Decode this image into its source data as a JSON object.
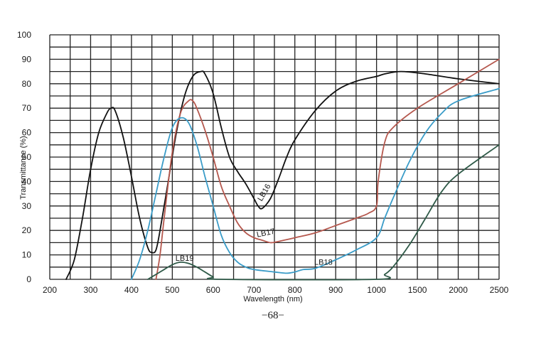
{
  "chart_data": {
    "type": "line",
    "xlabel": "Wavelength (nm)",
    "ylabel": "Transmittance (%)",
    "ylim": [
      0,
      100
    ],
    "x_ticks": [
      "200",
      "300",
      "400",
      "500",
      "600",
      "700",
      "800",
      "900",
      "1000",
      "1500",
      "2000",
      "2500"
    ],
    "y_ticks": [
      "0",
      "10",
      "20",
      "30",
      "40",
      "50",
      "60",
      "70",
      "80",
      "90",
      "100"
    ],
    "grid": true,
    "series": [
      {
        "name": "LB16",
        "color": "#111111",
        "x": [
          240,
          260,
          280,
          300,
          320,
          340,
          350,
          360,
          380,
          400,
          420,
          440,
          450,
          460,
          470,
          490,
          510,
          530,
          550,
          570,
          580,
          600,
          620,
          640,
          660,
          680,
          700,
          710,
          720,
          740,
          760,
          780,
          800,
          850,
          900,
          950,
          1000,
          1100,
          1300,
          1600,
          2000,
          2500
        ],
        "y": [
          0,
          8,
          25,
          45,
          60,
          68,
          70,
          69,
          58,
          42,
          25,
          13,
          11,
          12,
          20,
          40,
          60,
          75,
          83,
          85,
          84,
          76,
          62,
          50,
          44,
          39,
          33,
          30,
          29,
          33,
          41,
          50,
          57,
          69,
          77,
          81,
          83,
          84,
          85,
          84,
          82,
          80
        ]
      },
      {
        "name": "LB17",
        "color": "#b5584e",
        "x": [
          460,
          470,
          480,
          500,
          520,
          540,
          550,
          560,
          580,
          600,
          620,
          640,
          660,
          680,
          700,
          720,
          740,
          760,
          800,
          850,
          900,
          950,
          980,
          1000,
          1020,
          1100,
          1200,
          1500,
          2000,
          2500
        ],
        "y": [
          0,
          10,
          25,
          52,
          68,
          73,
          73,
          70,
          61,
          50,
          38,
          30,
          23,
          19,
          17,
          16,
          15,
          15.5,
          17,
          19,
          22,
          25,
          27,
          30,
          40,
          56,
          62,
          70,
          80,
          90
        ]
      },
      {
        "name": "LB18",
        "color": "#3a9cc8",
        "x": [
          400,
          420,
          440,
          460,
          480,
          500,
          520,
          540,
          560,
          580,
          600,
          620,
          640,
          660,
          680,
          700,
          750,
          780,
          800,
          820,
          850,
          900,
          950,
          1000,
          1100,
          1200,
          1400,
          1600,
          1800,
          2000,
          2500
        ],
        "y": [
          0,
          8,
          20,
          35,
          50,
          62,
          66,
          64,
          55,
          42,
          30,
          18,
          11,
          7,
          5,
          4,
          3,
          2.5,
          3,
          4,
          4.5,
          8,
          12,
          17,
          25,
          33,
          48,
          60,
          68,
          73,
          78
        ]
      },
      {
        "name": "LB19",
        "color": "#2f5a48",
        "x": [
          440,
          460,
          480,
          500,
          520,
          540,
          560,
          580,
          600,
          620,
          1000,
          1100,
          1200,
          1400,
          1600,
          1800,
          2000,
          2500
        ],
        "y": [
          0,
          2,
          4,
          6,
          7,
          6.5,
          5,
          3,
          1,
          0,
          0,
          2,
          5,
          14,
          25,
          36,
          43,
          55
        ]
      }
    ],
    "annotations": [
      {
        "text": "LB16",
        "series": "LB16"
      },
      {
        "text": "LB17",
        "series": "LB17"
      },
      {
        "text": "LB18",
        "series": "LB18"
      },
      {
        "text": "LB19",
        "series": "LB19"
      }
    ]
  },
  "footer": {
    "page_number": "−68−"
  }
}
